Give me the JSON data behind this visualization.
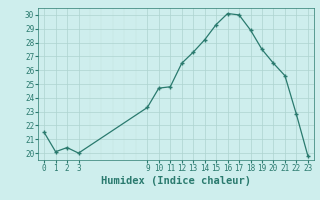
{
  "x": [
    0,
    1,
    2,
    3,
    9,
    10,
    11,
    12,
    13,
    14,
    15,
    16,
    17,
    18,
    19,
    20,
    21,
    22,
    23
  ],
  "y": [
    21.5,
    20.1,
    20.4,
    20.0,
    23.3,
    24.7,
    24.8,
    26.5,
    27.3,
    28.2,
    29.3,
    30.1,
    30.0,
    28.9,
    27.5,
    26.5,
    25.6,
    22.8,
    19.8
  ],
  "xlabel": "Humidex (Indice chaleur)",
  "ylim": [
    19.5,
    30.5
  ],
  "xlim": [
    -0.5,
    23.5
  ],
  "yticks": [
    20,
    21,
    22,
    23,
    24,
    25,
    26,
    27,
    28,
    29,
    30
  ],
  "xticks": [
    0,
    1,
    2,
    3,
    9,
    10,
    11,
    12,
    13,
    14,
    15,
    16,
    17,
    18,
    19,
    20,
    21,
    22,
    23
  ],
  "line_color": "#2a7a6e",
  "bg_color": "#ceeeed",
  "grid_color_major": "#aed4d0",
  "grid_color_minor": "#c0e0dc",
  "tick_color": "#2a7a6e",
  "label_color": "#2a7a6e",
  "tick_fontsize": 5.5,
  "xlabel_fontsize": 7.5
}
